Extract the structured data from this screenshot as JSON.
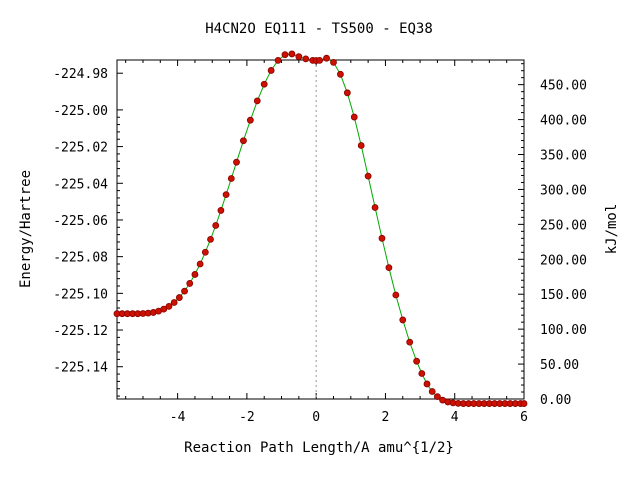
{
  "chart_data": {
    "type": "scatter",
    "title": "H4CN2O   EQ111 - TS500 - EQ38",
    "xlabel": "Reaction Path Length/A amu^{1/2}",
    "ylabel": "Energy/Hartree",
    "y2label": "kJ/mol",
    "xlim": [
      -5.75,
      6.0
    ],
    "ylim": [
      -225.1576,
      -224.9728
    ],
    "y2lim": [
      0.0,
      485.3
    ],
    "x_ticks": [
      "-4",
      "-2",
      "0",
      "2",
      "4",
      "6"
    ],
    "y_ticks": [
      "-224.98",
      "-225.00",
      "-225.02",
      "-225.04",
      "-225.06",
      "-225.08",
      "-225.10",
      "-225.12",
      "-225.14"
    ],
    "y2_ticks": [
      "0.00",
      "50.00",
      "100.00",
      "150.00",
      "200.00",
      "250.00",
      "300.00",
      "350.00",
      "400.00",
      "450.00"
    ],
    "ts_marker_x": 0,
    "line_color": "#00aa00",
    "marker_color": "#cc1100",
    "marker_edge_color": "#880000",
    "guide_color": "#999999",
    "series": [
      {
        "x": [
          -5.75,
          -5.6,
          -5.45,
          -5.3,
          -5.15,
          -5.0,
          -4.85,
          -4.7,
          -4.55,
          -4.4,
          -4.25,
          -4.1,
          -3.95,
          -3.8,
          -3.65,
          -3.5,
          -3.35,
          -3.2,
          -3.05,
          -2.9,
          -2.75,
          -2.6,
          -2.45,
          -2.3,
          -2.1,
          -1.9,
          -1.7,
          -1.5,
          -1.3,
          -1.1,
          -0.9,
          -0.7,
          -0.5,
          -0.3,
          -0.1,
          0.0,
          0.1,
          0.3,
          0.5,
          0.7,
          0.9,
          1.1,
          1.3,
          1.5,
          1.7,
          1.9,
          2.1,
          2.3,
          2.5,
          2.7,
          2.9,
          3.05,
          3.2,
          3.35,
          3.5,
          3.65,
          3.8,
          3.95,
          4.1,
          4.25,
          4.4,
          4.55,
          4.7,
          4.85,
          5.0,
          5.15,
          5.3,
          5.45,
          5.6,
          5.75,
          5.9,
          6.0
        ],
        "y": [
          -225.1111,
          -225.1111,
          -225.1111,
          -225.1111,
          -225.1111,
          -225.111,
          -225.1108,
          -225.1104,
          -225.1097,
          -225.1086,
          -225.1071,
          -225.105,
          -225.1023,
          -225.0988,
          -225.0946,
          -225.0897,
          -225.084,
          -225.0776,
          -225.0706,
          -225.063,
          -225.0548,
          -225.0462,
          -225.0374,
          -225.0285,
          -225.0168,
          -225.0056,
          -224.9951,
          -224.986,
          -224.9785,
          -224.973,
          -224.9699,
          -224.9695,
          -224.971,
          -224.9722,
          -224.973,
          -224.9731,
          -224.973,
          -224.9718,
          -224.9741,
          -224.9806,
          -224.9907,
          -225.0039,
          -225.0194,
          -225.0361,
          -225.0532,
          -225.07,
          -225.086,
          -225.1009,
          -225.1145,
          -225.1266,
          -225.137,
          -225.1437,
          -225.1494,
          -225.1535,
          -225.1563,
          -225.1582,
          -225.1592,
          -225.1597,
          -225.16,
          -225.1601,
          -225.1601,
          -225.1601,
          -225.1601,
          -225.1601,
          -225.1601,
          -225.1601,
          -225.1601,
          -225.1601,
          -225.1601,
          -225.1601,
          -225.1601,
          -225.1601
        ]
      }
    ]
  }
}
